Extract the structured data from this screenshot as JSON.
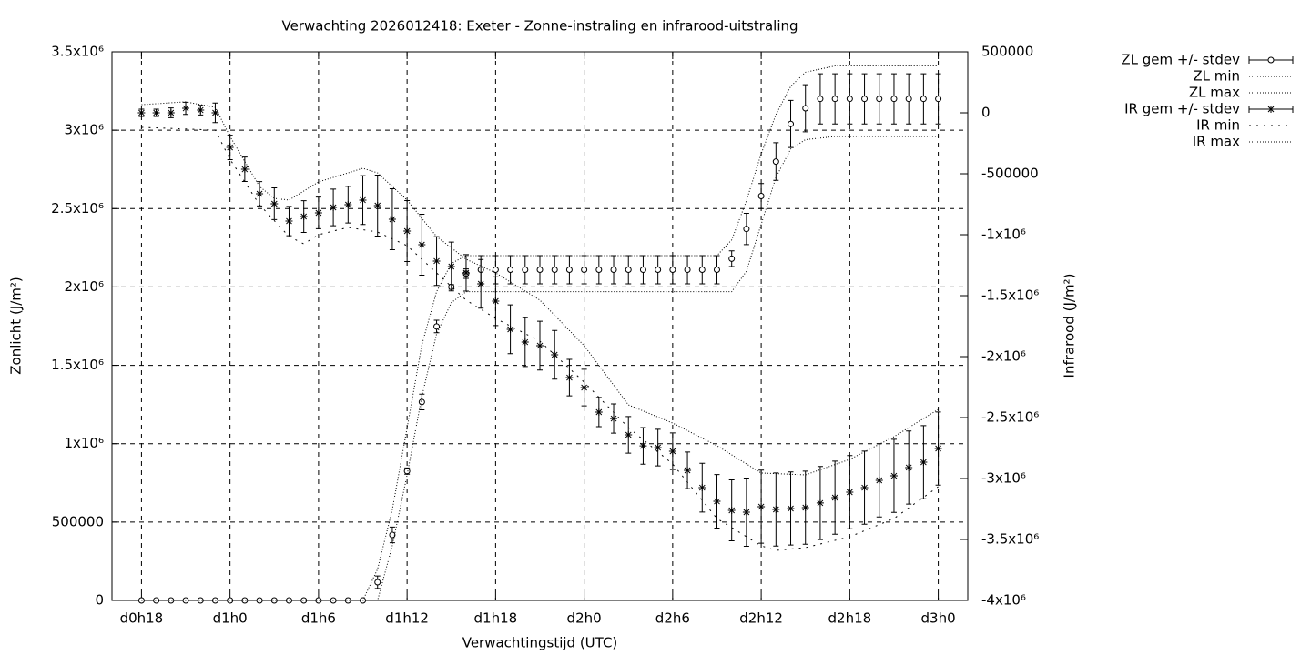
{
  "chart_data": {
    "type": "errorbar",
    "title": "Verwachting 2026012418: Exeter - Zonne-instraling en infrarood-uitstraling",
    "xlabel": "Verwachtingstijd (UTC)",
    "ylabel": "Zonlicht (J/m²)",
    "y2label": "Infrarood (J/m²)",
    "x": [
      18,
      19,
      20,
      21,
      22,
      23,
      24,
      25,
      26,
      27,
      28,
      29,
      30,
      31,
      32,
      33,
      34,
      35,
      36,
      37,
      38,
      39,
      40,
      41,
      42,
      43,
      44,
      45,
      46,
      47,
      48,
      49,
      50,
      51,
      52,
      53,
      54,
      55,
      56,
      57,
      58,
      59,
      60,
      61,
      62,
      63,
      64,
      65,
      66,
      67,
      68,
      69,
      70,
      71,
      72
    ],
    "xlim": [
      16,
      74
    ],
    "xticks": [
      {
        "value": 18,
        "label": "d0h18"
      },
      {
        "value": 24,
        "label": "d1h0"
      },
      {
        "value": 30,
        "label": "d1h6"
      },
      {
        "value": 36,
        "label": "d1h12"
      },
      {
        "value": 42,
        "label": "d1h18"
      },
      {
        "value": 48,
        "label": "d2h0"
      },
      {
        "value": 54,
        "label": "d2h6"
      },
      {
        "value": 60,
        "label": "d2h12"
      },
      {
        "value": 66,
        "label": "d2h18"
      },
      {
        "value": 72,
        "label": "d3h0"
      }
    ],
    "ylim": [
      0,
      3500000
    ],
    "yticks": [
      0,
      500000,
      {
        "value": 1000000,
        "label": "1x10⁶"
      },
      {
        "value": 1500000,
        "label": "1.5x10⁶"
      },
      {
        "value": 2000000,
        "label": "2x10⁶"
      },
      {
        "value": 2500000,
        "label": "2.5x10⁶"
      },
      {
        "value": 3000000,
        "label": "3x10⁶"
      },
      {
        "value": 3500000,
        "label": "3.5x10⁶"
      }
    ],
    "y2lim": [
      -4000000,
      500000
    ],
    "y2ticks": [
      500000,
      0,
      -500000,
      {
        "value": -1000000,
        "label": "-1x10⁶"
      },
      {
        "value": -1500000,
        "label": "-1.5x10⁶"
      },
      {
        "value": -2000000,
        "label": "-2x10⁶"
      },
      {
        "value": -2500000,
        "label": "-2.5x10⁶"
      },
      {
        "value": -3000000,
        "label": "-3x10⁶"
      },
      {
        "value": -3500000,
        "label": "-3.5x10⁶"
      },
      {
        "value": -4000000,
        "label": "-4x10⁶"
      }
    ],
    "grid": true,
    "legend": "top-right",
    "series": [
      {
        "name": "ZL gem +/- stdev",
        "color": "#000000",
        "marker": "circle",
        "values": [
          0,
          0,
          0,
          0,
          0,
          0,
          0,
          0,
          0,
          0,
          0,
          0,
          0,
          0,
          0,
          0,
          116000,
          418000,
          825000,
          1266000,
          1748000,
          2000000,
          2085000,
          2110000,
          2110000,
          2110000,
          2110000,
          2110000,
          2110000,
          2110000,
          2110000,
          2110000,
          2110000,
          2110000,
          2110000,
          2110000,
          2110000,
          2110000,
          2110000,
          2110000,
          2180000,
          2370000,
          2580000,
          2800000,
          3040000,
          3140000,
          3200000,
          3200000,
          3200000,
          3200000,
          3200000,
          3200000,
          3200000,
          3200000,
          3200000
        ],
        "errors": [
          0,
          0,
          0,
          0,
          0,
          0,
          0,
          0,
          0,
          0,
          0,
          0,
          0,
          0,
          0,
          0,
          40000,
          50000,
          20000,
          50000,
          40000,
          15000,
          30000,
          90000,
          90000,
          90000,
          90000,
          90000,
          90000,
          90000,
          90000,
          90000,
          90000,
          90000,
          90000,
          90000,
          90000,
          90000,
          90000,
          90000,
          50000,
          100000,
          80000,
          120000,
          150000,
          150000,
          160000,
          160000,
          160000,
          160000,
          160000,
          160000,
          160000,
          160000,
          160000
        ]
      },
      {
        "name": "ZL min",
        "color": "#000000",
        "dash": "fine",
        "x": [
          18,
          34,
          35,
          36,
          37,
          38,
          39,
          40,
          58,
          59,
          60,
          61,
          62,
          63,
          65,
          72
        ],
        "values": [
          0,
          0,
          350000,
          800000,
          1300000,
          1700000,
          1900000,
          1970000,
          1970000,
          2100000,
          2400000,
          2700000,
          2880000,
          2940000,
          2960000,
          2960000
        ]
      },
      {
        "name": "ZL max",
        "color": "#000000",
        "dash": "fine",
        "x": [
          18,
          33,
          34,
          35,
          36,
          37,
          38,
          39,
          40,
          57,
          58,
          59,
          60,
          61,
          62,
          63,
          65,
          72
        ],
        "values": [
          0,
          0,
          200000,
          580000,
          1100000,
          1630000,
          1970000,
          2150000,
          2200000,
          2200000,
          2300000,
          2550000,
          2850000,
          3100000,
          3280000,
          3370000,
          3410000,
          3410000
        ],
        "z": 0
      },
      {
        "name": "IR gem +/- stdev",
        "color": "#000000",
        "marker": "star",
        "axis": "y2",
        "values": [
          0,
          0,
          0,
          37000,
          22000,
          0,
          -284000,
          -463000,
          -664000,
          -746000,
          -888000,
          -851000,
          -821000,
          -776000,
          -754000,
          -716000,
          -761000,
          -873000,
          -970000,
          -1082000,
          -1216000,
          -1261000,
          -1313000,
          -1403000,
          -1545000,
          -1776000,
          -1881000,
          -1910000,
          -1985000,
          -2172000,
          -2254000,
          -2455000,
          -2508000,
          -2642000,
          -2732000,
          -2746000,
          -2776000,
          -2933000,
          -3075000,
          -3187000,
          -3261000,
          -3276000,
          -3231000,
          -3254000,
          -3246000,
          -3239000,
          -3201000,
          -3157000,
          -3112000,
          -3075000,
          -3015000,
          -2978000,
          -2910000,
          -2866000,
          -2754000
        ],
        "errors": [
          30000,
          30000,
          40000,
          50000,
          40000,
          80000,
          100000,
          100000,
          100000,
          130000,
          120000,
          130000,
          130000,
          150000,
          150000,
          200000,
          250000,
          250000,
          250000,
          250000,
          200000,
          200000,
          150000,
          200000,
          200000,
          200000,
          200000,
          200000,
          200000,
          150000,
          150000,
          120000,
          120000,
          150000,
          150000,
          150000,
          150000,
          150000,
          200000,
          220000,
          250000,
          280000,
          300000,
          300000,
          300000,
          300000,
          300000,
          300000,
          300000,
          300000,
          300000,
          300000,
          300000,
          300000,
          300000
        ]
      },
      {
        "name": "IR min",
        "color": "#000000",
        "dash": "sparse",
        "axis": "y2",
        "x": [
          18,
          23,
          24,
          26,
          28,
          29,
          30,
          32,
          34,
          36,
          38,
          40,
          42,
          45,
          48,
          51,
          54,
          57,
          60,
          61,
          63,
          66,
          69,
          72
        ],
        "values": [
          -119000,
          -142000,
          -381000,
          -754000,
          -1015000,
          -1075000,
          -1000000,
          -940000,
          -978000,
          -1090000,
          -1313000,
          -1537000,
          -1687000,
          -1873000,
          -2209000,
          -2582000,
          -2881000,
          -3328000,
          -3552000,
          -3590000,
          -3567000,
          -3478000,
          -3328000,
          -3067000
        ]
      },
      {
        "name": "IR max",
        "color": "#000000",
        "dash": "fine",
        "axis": "y2",
        "x": [
          18,
          21,
          23,
          24,
          26,
          27,
          28,
          30,
          32,
          33,
          34,
          36,
          38,
          40,
          42,
          45,
          48,
          51,
          54,
          57,
          60,
          63,
          66,
          69,
          72
        ],
        "values": [
          67000,
          90000,
          45000,
          -194000,
          -604000,
          -702000,
          -716000,
          -567000,
          -493000,
          -455000,
          -493000,
          -716000,
          -1015000,
          -1201000,
          -1313000,
          -1537000,
          -1910000,
          -2396000,
          -2545000,
          -2731000,
          -2955000,
          -2970000,
          -2843000,
          -2657000,
          -2433000
        ]
      }
    ]
  }
}
